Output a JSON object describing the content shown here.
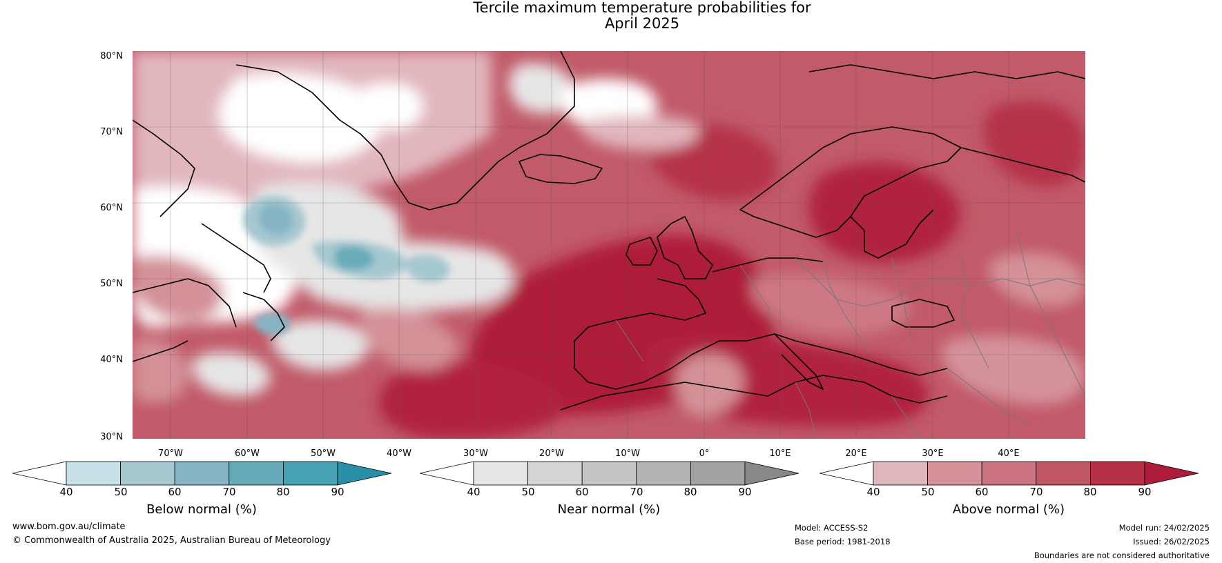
{
  "title": {
    "line1": "Tercile maximum temperature probabilities for",
    "line2": "April 2025"
  },
  "map": {
    "lat_labels": [
      "80°N",
      "70°N",
      "60°N",
      "50°N",
      "40°N",
      "30°N"
    ],
    "lon_labels": [
      "70°W",
      "60°W",
      "50°W",
      "40°W",
      "30°W",
      "20°W",
      "10°W",
      "0°",
      "10°E",
      "20°E",
      "30°E",
      "40°E"
    ],
    "lon_range": [
      -75,
      50
    ],
    "lat_range": [
      30,
      80
    ]
  },
  "colorbars": [
    {
      "label": "Below normal (%)",
      "ticks": [
        "40",
        "50",
        "60",
        "70",
        "80",
        "90"
      ],
      "colors": [
        "#ffffff",
        "#c8e1e8",
        "#a6c7d0",
        "#86b4c4",
        "#67abb9",
        "#46a1b3",
        "#2a8fa6"
      ]
    },
    {
      "label": "Near normal (%)",
      "ticks": [
        "40",
        "50",
        "60",
        "70",
        "80",
        "90"
      ],
      "colors": [
        "#ffffff",
        "#e6e6e6",
        "#d4d4d4",
        "#c4c4c4",
        "#b4b4b4",
        "#a2a2a2",
        "#888888"
      ]
    },
    {
      "label": "Above normal (%)",
      "ticks": [
        "40",
        "50",
        "60",
        "70",
        "80",
        "90"
      ],
      "colors": [
        "#ffffff",
        "#e0b6bd",
        "#d49198",
        "#c97480",
        "#be5663",
        "#b43044",
        "#ad1c3b"
      ]
    }
  ],
  "footer": {
    "website": "www.bom.gov.au/climate",
    "copyright": "© Commonwealth of Australia 2025, Australian Bureau of Meteorology",
    "model": "Model: ACCESS-S2",
    "base_period": "Base period: 1981-2018",
    "model_run": "Model run: 24/02/2025",
    "issued": "Issued: 26/02/2025",
    "disclaimer": "Boundaries are not considered authoritative"
  }
}
